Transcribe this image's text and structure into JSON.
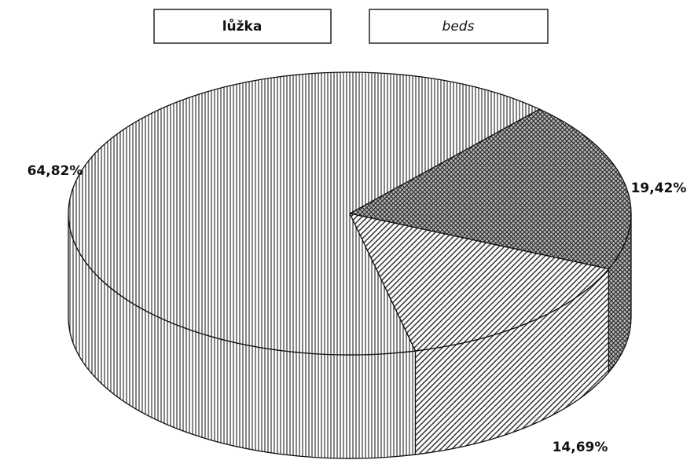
{
  "chart_data": {
    "type": "pie",
    "titles": [
      "lůžka",
      "beds"
    ],
    "values": [
      19.42,
      14.69,
      64.82
    ],
    "value_labels": [
      "19,42%",
      "14,69%",
      "64,82%"
    ]
  }
}
